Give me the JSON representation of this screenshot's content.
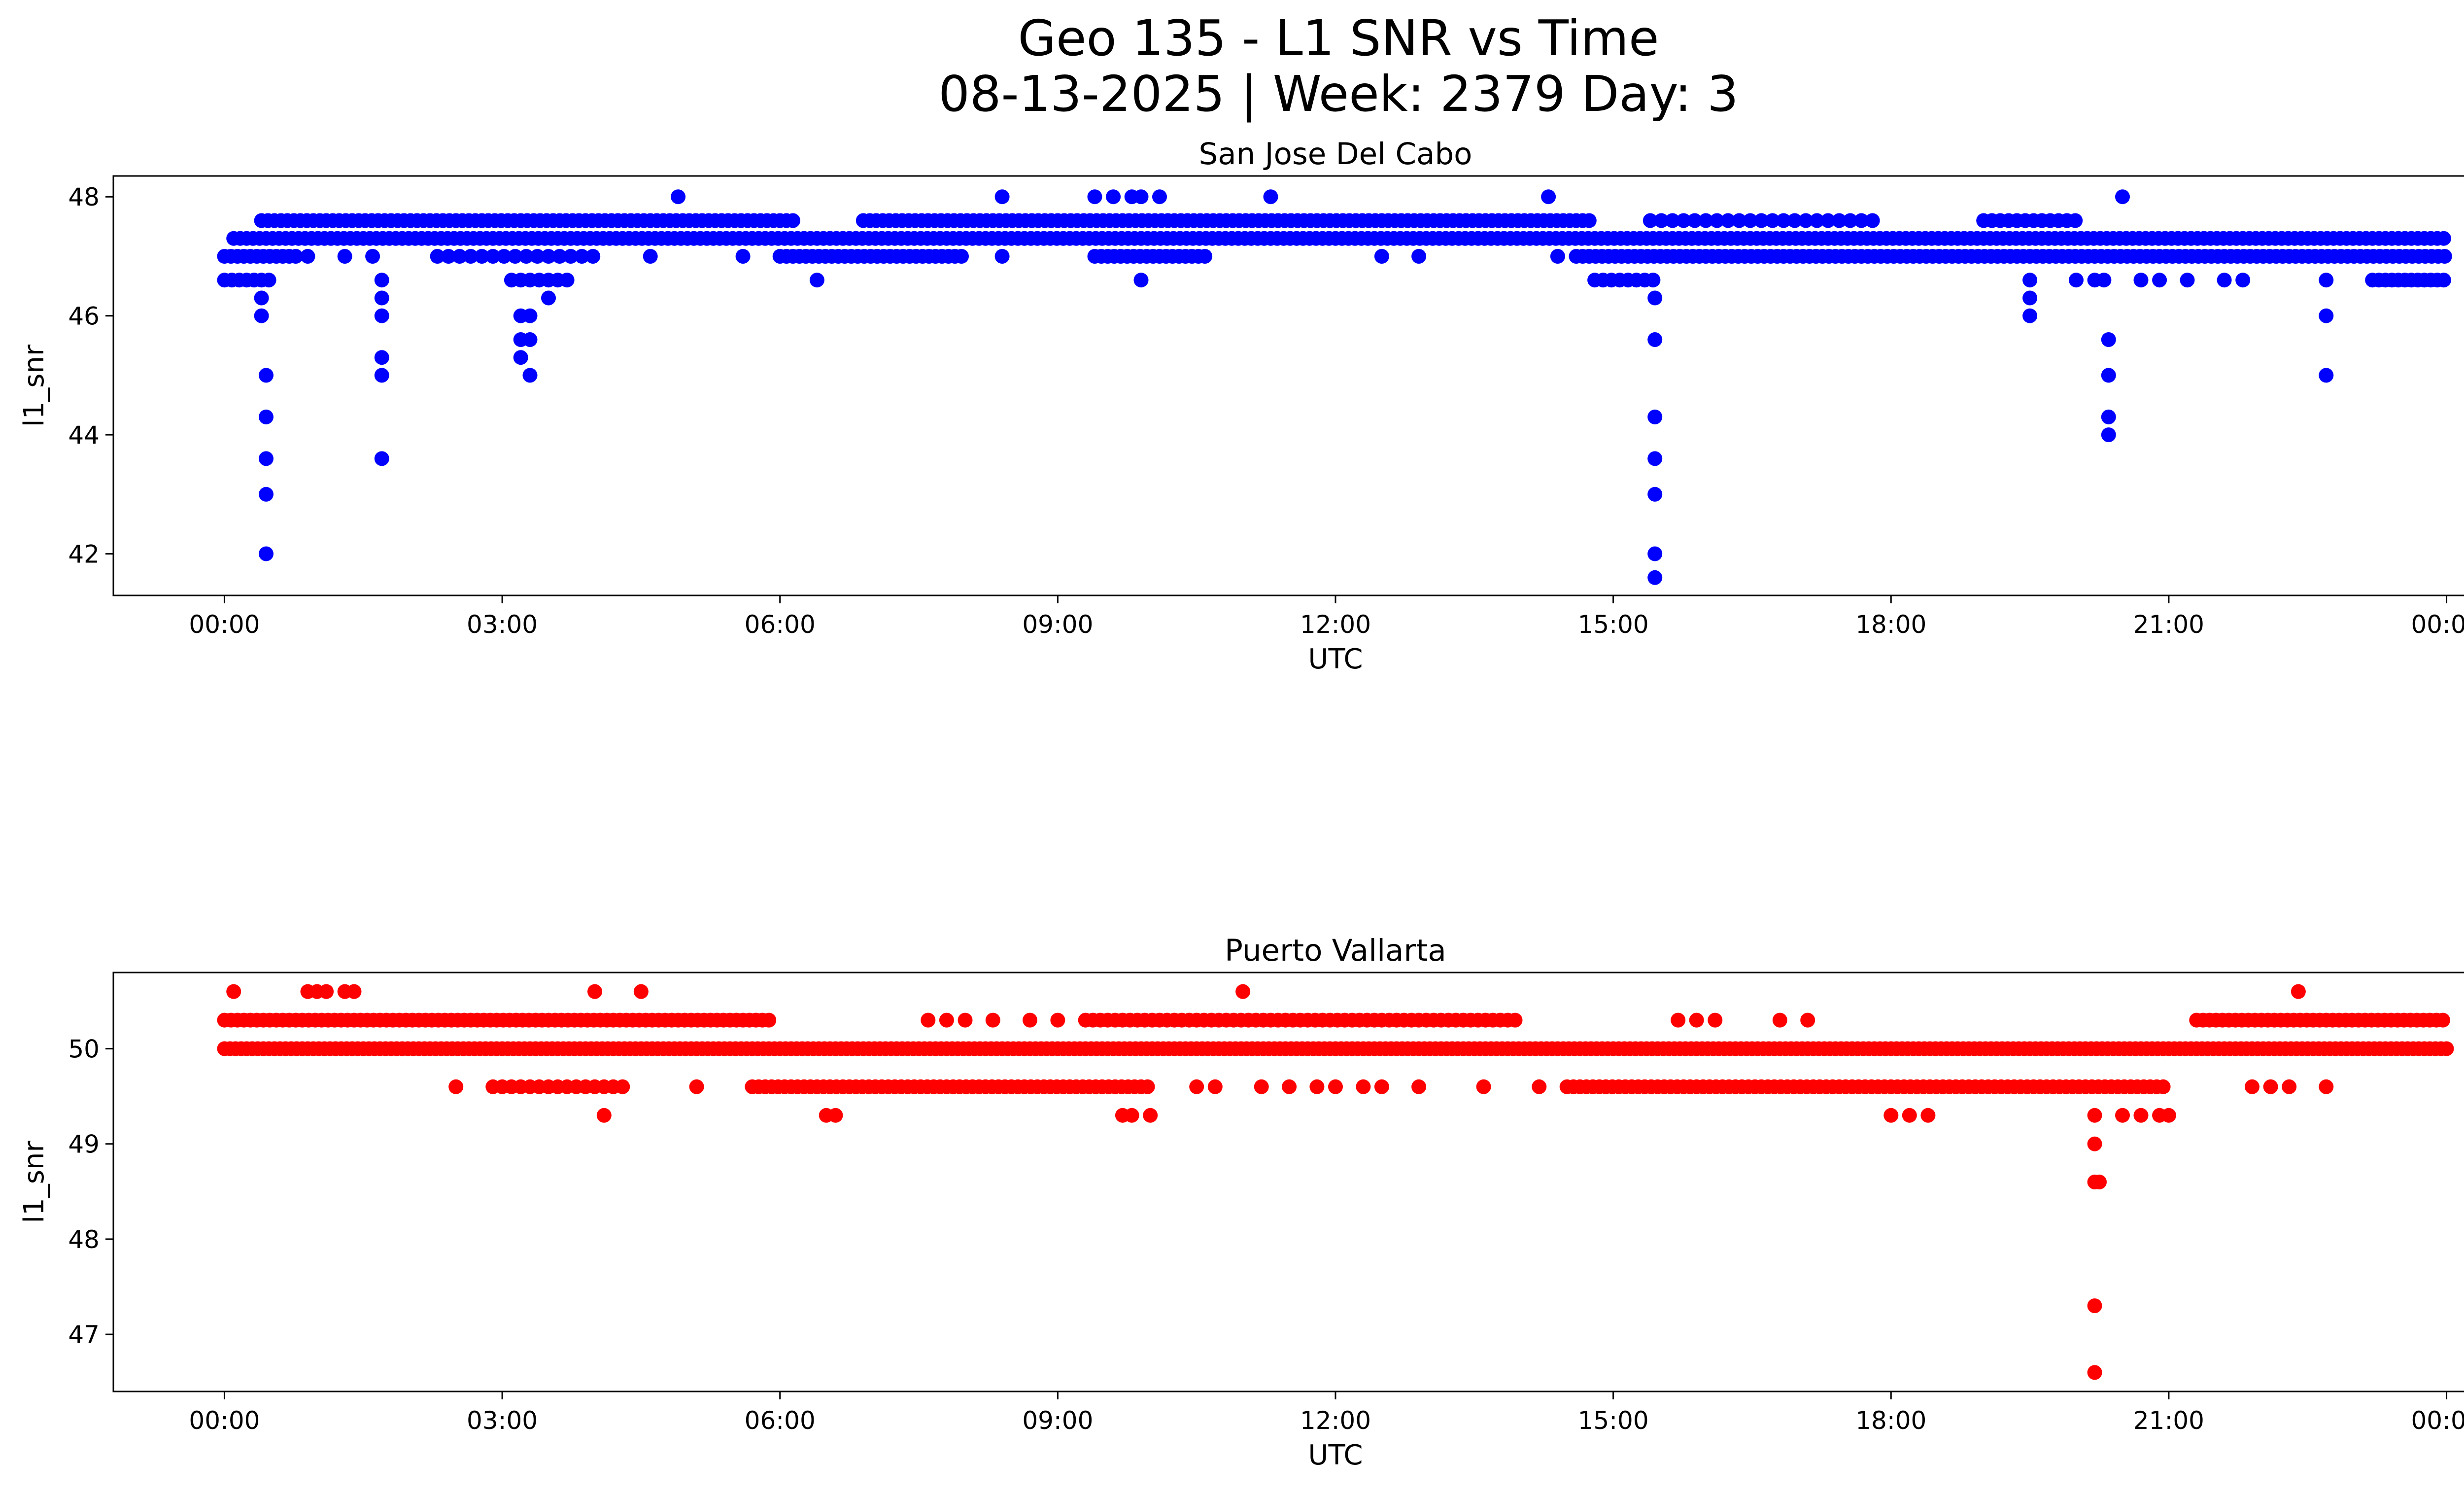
{
  "figure": {
    "title_line1": "Geo 135 - L1 SNR vs Time",
    "title_line2": "08-13-2025 | Week: 2379 Day: 3"
  },
  "chart_data": [
    {
      "type": "scatter",
      "title": "San Jose Del Cabo",
      "xlabel": "UTC",
      "ylabel": "l1_snr",
      "color": "#0000ff",
      "x_unit": "hours since 2025-08-13 00:00 UTC",
      "xlim": [
        -1.2,
        25.2
      ],
      "ylim": [
        41.3,
        48.35
      ],
      "xticks": [
        0,
        3,
        6,
        9,
        12,
        15,
        18,
        21,
        24
      ],
      "xtick_labels": [
        "00:00",
        "03:00",
        "06:00",
        "09:00",
        "12:00",
        "15:00",
        "18:00",
        "21:00",
        "00:00"
      ],
      "yticks": [
        42,
        44,
        46,
        48
      ],
      "ytick_labels": [
        "42",
        "44",
        "46",
        "48"
      ],
      "runs": [
        {
          "y": 47.3,
          "x_start": 0.1,
          "x_end": 24.0,
          "step": 0.07
        },
        {
          "y": 47.0,
          "x_start": 0.0,
          "x_end": 0.8,
          "step": 0.07
        },
        {
          "y": 47.0,
          "x_start": 2.3,
          "x_end": 4.0,
          "step": 0.12
        },
        {
          "y": 47.0,
          "x_start": 6.0,
          "x_end": 8.0,
          "step": 0.07
        },
        {
          "y": 47.0,
          "x_start": 9.4,
          "x_end": 10.6,
          "step": 0.07
        },
        {
          "y": 47.0,
          "x_start": 14.6,
          "x_end": 24.0,
          "step": 0.07
        },
        {
          "y": 47.6,
          "x_start": 0.4,
          "x_end": 6.2,
          "step": 0.07
        },
        {
          "y": 47.6,
          "x_start": 6.9,
          "x_end": 14.8,
          "step": 0.07
        },
        {
          "y": 47.6,
          "x_start": 15.4,
          "x_end": 17.8,
          "step": 0.12
        },
        {
          "y": 47.6,
          "x_start": 19.0,
          "x_end": 20.0,
          "step": 0.09
        },
        {
          "y": 46.6,
          "x_start": 0.0,
          "x_end": 0.5,
          "step": 0.08
        },
        {
          "y": 46.6,
          "x_start": 23.2,
          "x_end": 24.0,
          "step": 0.07
        },
        {
          "y": 46.6,
          "x_start": 14.8,
          "x_end": 15.5,
          "step": 0.09
        },
        {
          "y": 46.6,
          "x_start": 3.1,
          "x_end": 3.7,
          "step": 0.1
        }
      ],
      "points": [
        [
          0.4,
          46.3
        ],
        [
          0.4,
          46.0
        ],
        [
          0.45,
          45.0
        ],
        [
          0.45,
          44.3
        ],
        [
          0.45,
          43.6
        ],
        [
          0.45,
          43.0
        ],
        [
          0.45,
          42.0
        ],
        [
          0.9,
          47.0
        ],
        [
          1.3,
          47.0
        ],
        [
          1.6,
          47.0
        ],
        [
          1.7,
          46.6
        ],
        [
          1.7,
          46.3
        ],
        [
          1.7,
          46.0
        ],
        [
          1.7,
          45.3
        ],
        [
          1.7,
          45.0
        ],
        [
          1.7,
          43.6
        ],
        [
          3.2,
          46.0
        ],
        [
          3.3,
          46.0
        ],
        [
          3.2,
          45.6
        ],
        [
          3.3,
          45.6
        ],
        [
          3.2,
          45.3
        ],
        [
          3.3,
          45.0
        ],
        [
          3.5,
          46.3
        ],
        [
          4.6,
          47.0
        ],
        [
          4.9,
          48.0
        ],
        [
          5.6,
          47.0
        ],
        [
          6.4,
          46.6
        ],
        [
          8.4,
          48.0
        ],
        [
          8.4,
          47.0
        ],
        [
          9.4,
          48.0
        ],
        [
          9.6,
          48.0
        ],
        [
          9.8,
          48.0
        ],
        [
          9.9,
          48.0
        ],
        [
          10.1,
          48.0
        ],
        [
          9.9,
          46.6
        ],
        [
          11.3,
          48.0
        ],
        [
          12.5,
          47.0
        ],
        [
          12.9,
          47.0
        ],
        [
          14.3,
          48.0
        ],
        [
          14.4,
          47.0
        ],
        [
          15.45,
          46.3
        ],
        [
          15.45,
          45.6
        ],
        [
          15.45,
          44.3
        ],
        [
          15.45,
          43.6
        ],
        [
          15.45,
          43.0
        ],
        [
          15.45,
          42.0
        ],
        [
          15.45,
          41.6
        ],
        [
          19.5,
          46.6
        ],
        [
          19.5,
          46.3
        ],
        [
          19.5,
          46.0
        ],
        [
          20.0,
          46.6
        ],
        [
          20.2,
          46.6
        ],
        [
          20.3,
          46.6
        ],
        [
          20.35,
          45.6
        ],
        [
          20.35,
          45.0
        ],
        [
          20.35,
          44.3
        ],
        [
          20.35,
          44.0
        ],
        [
          20.5,
          48.0
        ],
        [
          20.7,
          46.6
        ],
        [
          20.9,
          46.6
        ],
        [
          21.2,
          46.6
        ],
        [
          21.6,
          46.6
        ],
        [
          21.8,
          46.6
        ],
        [
          22.7,
          46.6
        ],
        [
          22.7,
          46.0
        ],
        [
          22.7,
          45.0
        ]
      ]
    },
    {
      "type": "scatter",
      "title": "Puerto Vallarta",
      "xlabel": "UTC",
      "ylabel": "l1_snr",
      "color": "#ff0000",
      "x_unit": "hours since 2025-08-13 00:00 UTC",
      "xlim": [
        -1.2,
        25.2
      ],
      "ylim": [
        46.4,
        50.8
      ],
      "xticks": [
        0,
        3,
        6,
        9,
        12,
        15,
        18,
        21,
        24
      ],
      "xtick_labels": [
        "00:00",
        "03:00",
        "06:00",
        "09:00",
        "12:00",
        "15:00",
        "18:00",
        "21:00",
        "00:00"
      ],
      "yticks": [
        47,
        48,
        49,
        50
      ],
      "ytick_labels": [
        "47",
        "48",
        "49",
        "50"
      ],
      "runs": [
        {
          "y": 50.0,
          "x_start": 0.0,
          "x_end": 24.0,
          "step": 0.06
        },
        {
          "y": 50.3,
          "x_start": 0.0,
          "x_end": 5.9,
          "step": 0.07
        },
        {
          "y": 50.3,
          "x_start": 9.3,
          "x_end": 14.0,
          "step": 0.08
        },
        {
          "y": 50.3,
          "x_start": 21.3,
          "x_end": 24.0,
          "step": 0.07
        },
        {
          "y": 49.6,
          "x_start": 5.7,
          "x_end": 10.0,
          "step": 0.07
        },
        {
          "y": 49.6,
          "x_start": 14.5,
          "x_end": 21.0,
          "step": 0.07
        },
        {
          "y": 49.6,
          "x_start": 2.9,
          "x_end": 4.3,
          "step": 0.1
        }
      ],
      "points": [
        [
          0.1,
          50.6
        ],
        [
          0.9,
          50.6
        ],
        [
          1.0,
          50.6
        ],
        [
          1.1,
          50.6
        ],
        [
          1.3,
          50.6
        ],
        [
          1.4,
          50.6
        ],
        [
          4.0,
          50.6
        ],
        [
          4.5,
          50.6
        ],
        [
          11.0,
          50.6
        ],
        [
          22.4,
          50.6
        ],
        [
          2.5,
          49.6
        ],
        [
          4.1,
          49.3
        ],
        [
          5.1,
          49.6
        ],
        [
          6.5,
          49.3
        ],
        [
          6.6,
          49.3
        ],
        [
          7.6,
          50.3
        ],
        [
          7.8,
          50.3
        ],
        [
          8.0,
          50.3
        ],
        [
          8.3,
          50.3
        ],
        [
          8.7,
          50.3
        ],
        [
          9.0,
          50.3
        ],
        [
          9.7,
          49.3
        ],
        [
          9.8,
          49.3
        ],
        [
          10.0,
          49.3
        ],
        [
          10.5,
          49.6
        ],
        [
          10.7,
          49.6
        ],
        [
          11.2,
          49.6
        ],
        [
          11.5,
          49.6
        ],
        [
          11.8,
          49.6
        ],
        [
          12.0,
          49.6
        ],
        [
          12.3,
          49.6
        ],
        [
          12.5,
          49.6
        ],
        [
          12.9,
          49.6
        ],
        [
          13.6,
          49.6
        ],
        [
          14.2,
          49.6
        ],
        [
          15.7,
          50.3
        ],
        [
          15.9,
          50.3
        ],
        [
          16.1,
          50.3
        ],
        [
          16.8,
          50.3
        ],
        [
          17.1,
          50.3
        ],
        [
          18.0,
          49.3
        ],
        [
          18.2,
          49.3
        ],
        [
          18.4,
          49.3
        ],
        [
          20.2,
          49.3
        ],
        [
          20.2,
          49.0
        ],
        [
          20.2,
          48.6
        ],
        [
          20.25,
          48.6
        ],
        [
          20.2,
          47.3
        ],
        [
          20.2,
          46.6
        ],
        [
          20.5,
          49.3
        ],
        [
          20.7,
          49.3
        ],
        [
          20.9,
          49.3
        ],
        [
          21.0,
          49.3
        ],
        [
          21.9,
          49.6
        ],
        [
          22.1,
          49.6
        ],
        [
          22.3,
          49.6
        ],
        [
          22.7,
          49.6
        ]
      ]
    }
  ]
}
